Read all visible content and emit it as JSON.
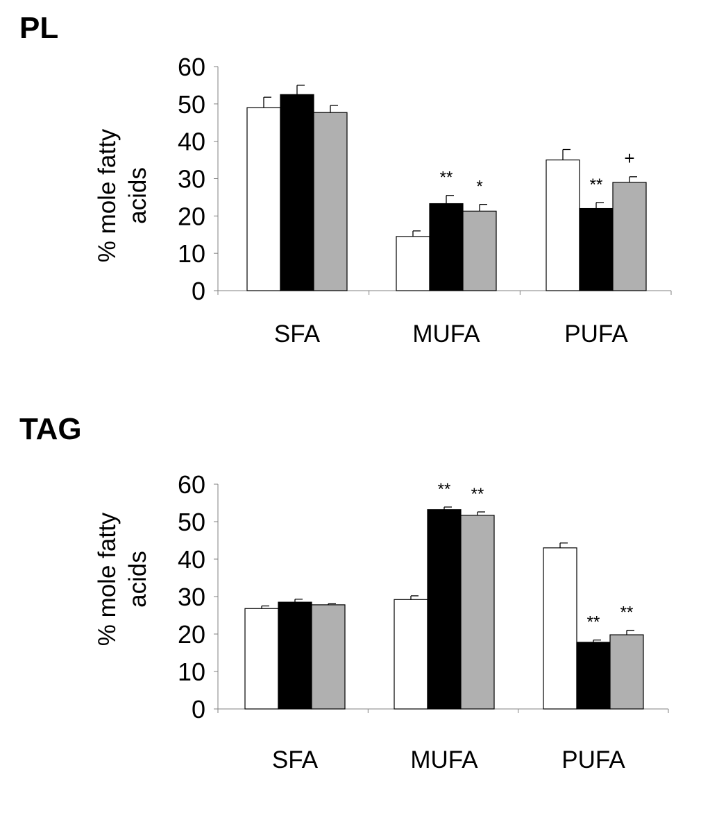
{
  "chart_data": [
    {
      "type": "bar",
      "panel_label": "PL",
      "categories": [
        "SFA",
        "MUFA",
        "PUFA"
      ],
      "ylabel": "% mole fatty acids",
      "ylim": [
        0,
        60
      ],
      "yticks": [
        0,
        10,
        20,
        30,
        40,
        50,
        60
      ],
      "grid": false,
      "series": [
        {
          "color": "#ffffff",
          "values": [
            49,
            14.5,
            35
          ],
          "errors": [
            2.8,
            1.5,
            2.8
          ]
        },
        {
          "color": "#000000",
          "values": [
            52.5,
            23.3,
            22
          ],
          "errors": [
            2.5,
            2.2,
            1.6
          ]
        },
        {
          "color": "#b0b0b0",
          "values": [
            47.7,
            21.3,
            29
          ],
          "errors": [
            1.9,
            1.8,
            1.5
          ]
        }
      ],
      "annotations": [
        {
          "category": "MUFA",
          "series": 1,
          "text": "**"
        },
        {
          "category": "MUFA",
          "series": 2,
          "text": "*"
        },
        {
          "category": "PUFA",
          "series": 1,
          "text": "**"
        },
        {
          "category": "PUFA",
          "series": 2,
          "text": "+"
        }
      ]
    },
    {
      "type": "bar",
      "panel_label": "TAG",
      "categories": [
        "SFA",
        "MUFA",
        "PUFA"
      ],
      "ylabel": "% mole fatty acids",
      "ylim": [
        0,
        60
      ],
      "yticks": [
        0,
        10,
        20,
        30,
        40,
        50,
        60
      ],
      "grid": false,
      "series": [
        {
          "color": "#ffffff",
          "values": [
            26.8,
            29.2,
            43
          ],
          "errors": [
            0.7,
            1.0,
            1.3
          ]
        },
        {
          "color": "#000000",
          "values": [
            28.5,
            53.2,
            17.8
          ],
          "errors": [
            0.8,
            0.7,
            0.6
          ]
        },
        {
          "color": "#b0b0b0",
          "values": [
            27.8,
            51.7,
            19.8
          ],
          "errors": [
            0.3,
            0.9,
            1.2
          ]
        }
      ],
      "annotations": [
        {
          "category": "MUFA",
          "series": 1,
          "text": "**"
        },
        {
          "category": "MUFA",
          "series": 2,
          "text": "**"
        },
        {
          "category": "PUFA",
          "series": 1,
          "text": "**"
        },
        {
          "category": "PUFA",
          "series": 2,
          "text": "**"
        }
      ]
    }
  ]
}
